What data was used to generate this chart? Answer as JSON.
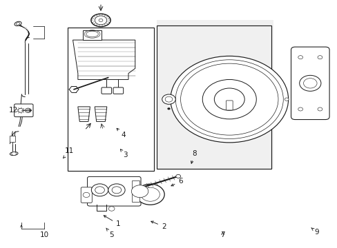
{
  "bg": "#ffffff",
  "lc": "#1a1a1a",
  "lw": 0.7,
  "fs": 7.5,
  "figsize": [
    4.89,
    3.6
  ],
  "dpi": 100,
  "labels": {
    "1": [
      0.35,
      0.095,
      0.3,
      0.135
    ],
    "2": [
      0.485,
      0.085,
      0.44,
      0.11
    ],
    "3": [
      0.37,
      0.375,
      0.355,
      0.4
    ],
    "4": [
      0.365,
      0.455,
      0.34,
      0.49
    ],
    "5": [
      0.33,
      0.052,
      0.31,
      0.085
    ],
    "6": [
      0.535,
      0.268,
      0.5,
      0.245
    ],
    "7": [
      0.66,
      0.052,
      0.66,
      0.072
    ],
    "8": [
      0.575,
      0.38,
      0.565,
      0.33
    ],
    "9": [
      0.94,
      0.062,
      0.918,
      0.085
    ],
    "10": [
      0.13,
      0.052,
      0.095,
      0.1
    ],
    "11": [
      0.205,
      0.39,
      0.185,
      0.36
    ],
    "12": [
      0.095,
      0.555,
      0.115,
      0.555
    ]
  }
}
